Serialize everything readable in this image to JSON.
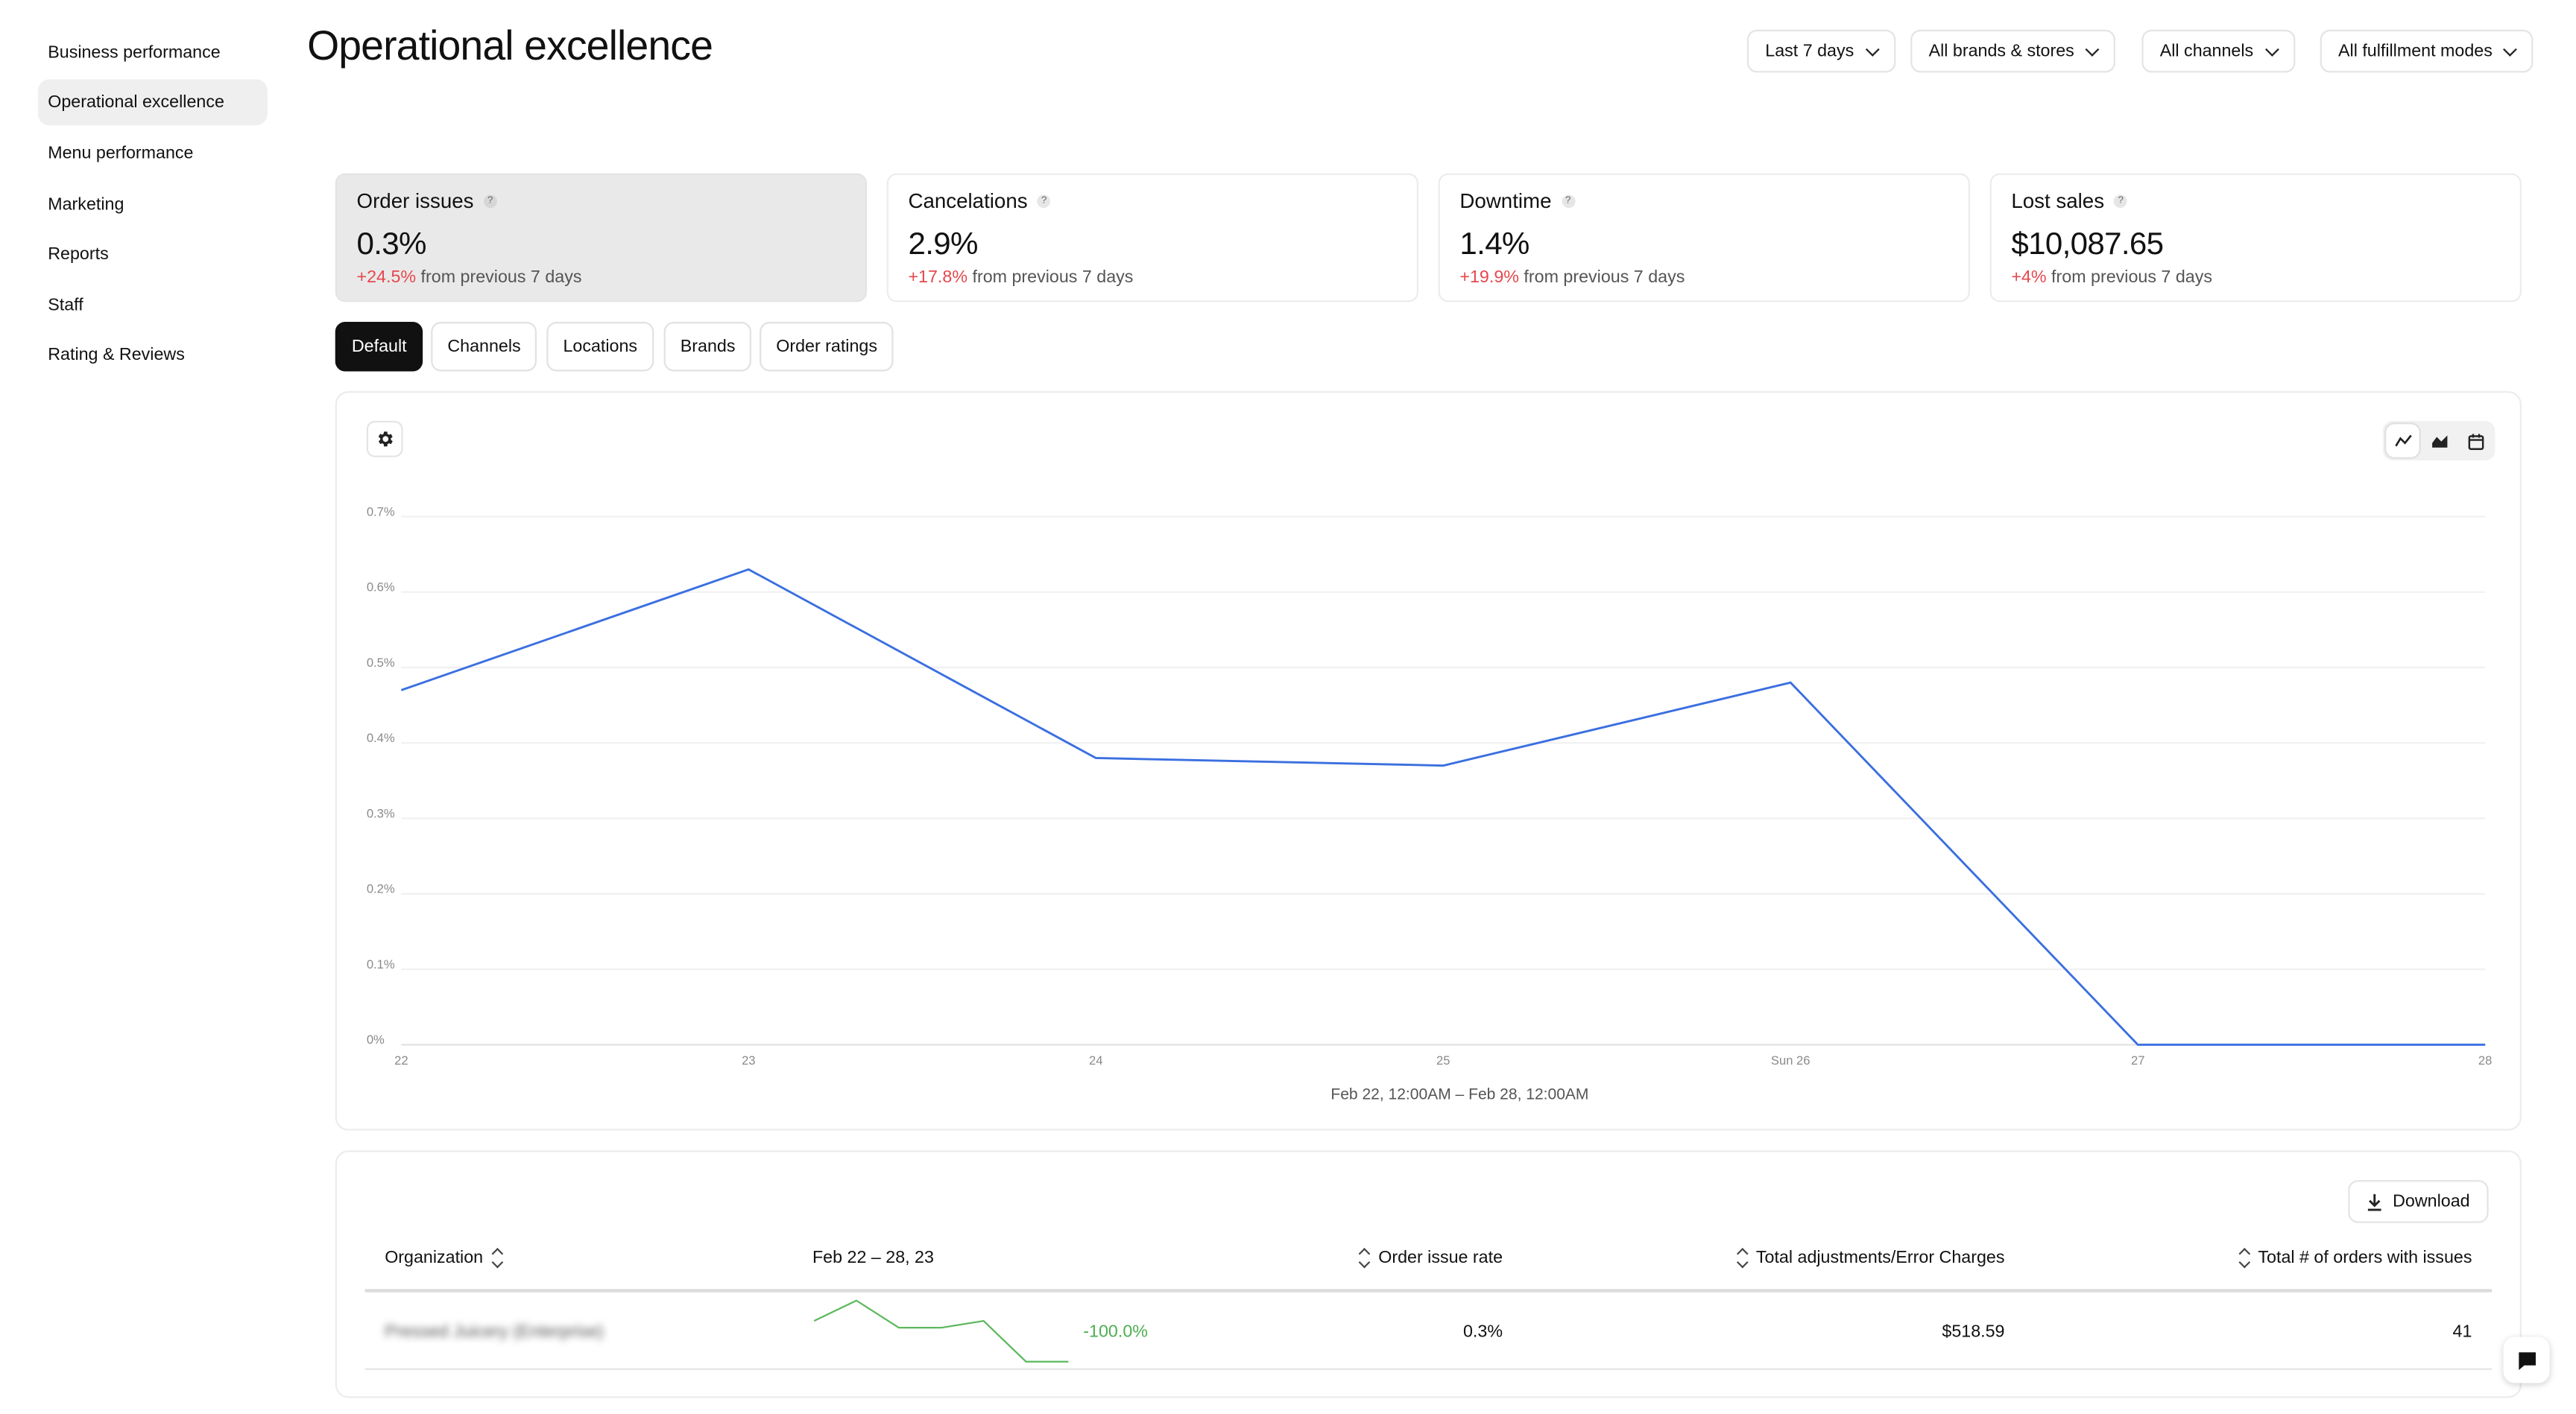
{
  "sidebar": {
    "items": [
      {
        "label": "Business performance",
        "active": false
      },
      {
        "label": "Operational excellence",
        "active": true
      },
      {
        "label": "Menu performance",
        "active": false
      },
      {
        "label": "Marketing",
        "active": false
      },
      {
        "label": "Reports",
        "active": false
      },
      {
        "label": "Staff",
        "active": false
      },
      {
        "label": "Rating & Reviews",
        "active": false
      }
    ]
  },
  "header": {
    "title": "Operational excellence",
    "filters": {
      "period": "Last 7 days",
      "brands": "All brands & stores",
      "channels": "All channels",
      "fulfillment": "All fulfillment modes"
    }
  },
  "metrics": [
    {
      "title": "Order issues",
      "value": "0.3%",
      "change": "+24.5%",
      "change_suffix": "from previous 7 days",
      "active": true
    },
    {
      "title": "Cancelations",
      "value": "2.9%",
      "change": "+17.8%",
      "change_suffix": "from previous 7 days",
      "active": false
    },
    {
      "title": "Downtime",
      "value": "1.4%",
      "change": "+19.9%",
      "change_suffix": "from previous 7 days",
      "active": false
    },
    {
      "title": "Lost sales",
      "value": "$10,087.65",
      "change": "+4%",
      "change_suffix": "from previous 7 days",
      "active": false
    }
  ],
  "tabs": [
    {
      "label": "Default",
      "active": true
    },
    {
      "label": "Channels",
      "active": false
    },
    {
      "label": "Locations",
      "active": false
    },
    {
      "label": "Brands",
      "active": false
    },
    {
      "label": "Order ratings",
      "active": false
    }
  ],
  "chart_data": {
    "type": "line",
    "x": [
      "22",
      "23",
      "24",
      "25",
      "Sun 26",
      "27",
      "28"
    ],
    "y_ticks": [
      "0%",
      "0.1%",
      "0.2%",
      "0.3%",
      "0.4%",
      "0.5%",
      "0.6%",
      "0.7%"
    ],
    "ylim": [
      0,
      0.7
    ],
    "series": [
      {
        "values": [
          0.47,
          0.63,
          0.38,
          0.37,
          0.48,
          0.0,
          0.0
        ],
        "color": "#3b6fe0"
      }
    ],
    "range_label": "Feb 22, 12:00AM – Feb 28, 12:00AM",
    "grid": true
  },
  "chart_controls": {
    "settings_icon": "gear-icon",
    "view_icons": [
      "line-chart-icon",
      "area-chart-icon",
      "calendar-icon"
    ],
    "active_view": 0
  },
  "table": {
    "download_label": "Download",
    "columns": {
      "organization": "Organization",
      "dates": "Feb 22 – 28, 23",
      "rate": "Order issue rate",
      "charges": "Total adjustments/Error Charges",
      "orders": "Total # of orders with issues"
    },
    "rows": [
      {
        "organization": "Pressed Juicery (Enterprise)",
        "trend_change": "-100.0%",
        "trend_values": [
          0.42,
          0.48,
          0.4,
          0.4,
          0.42,
          0.3,
          0.3
        ],
        "rate": "0.3%",
        "charges": "$518.59",
        "orders": "41"
      }
    ]
  },
  "chat_icon": "chat-icon",
  "colors": {
    "accent": "#3b6fe0",
    "negative": "#e5484d",
    "positive": "#4caf50"
  }
}
